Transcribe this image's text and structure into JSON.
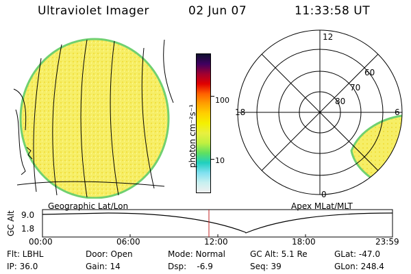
{
  "header": {
    "title": "Ultraviolet Imager",
    "date": "02 Jun 07",
    "time": "11:33:58 UT"
  },
  "colorbar": {
    "unit_label": "photon cm⁻²s⁻¹",
    "ticks": [
      "100",
      "10"
    ],
    "colors": [
      "#101030",
      "#400060",
      "#a00030",
      "#e00000",
      "#ff6000",
      "#ffa000",
      "#ffd000",
      "#f4f000",
      "#e8f040",
      "#c0f040",
      "#60e060",
      "#20d0c0",
      "#80e0f0",
      "#c8f0f0",
      "#f0f0f0"
    ]
  },
  "polar_plot": {
    "mlt_labels": [
      "12",
      "6",
      "0",
      "18"
    ],
    "mlat_labels": [
      "60",
      "70",
      "80"
    ]
  },
  "left_panel": {
    "label": "Geographic Lat/Lon"
  },
  "right_panel": {
    "label": "Apex MLat/MLT"
  },
  "timeline": {
    "axis_label": "GC Alt",
    "y_max": "9.0",
    "y_min": "1.8",
    "x_ticks": [
      "00:00",
      "06:00",
      "12:00",
      "18:00",
      "23:59"
    ],
    "current_marker_time": "11:33:58"
  },
  "status": {
    "flt": "Flt: LBHL",
    "ip": "IP: 36.0",
    "door": "Door: Open",
    "gain": "Gain: 14",
    "mode": "Mode: Normal",
    "dsp": "Dsp:    -6.9",
    "gc_alt": "GC Alt: 5.1 Re",
    "seq": "Seq: 39",
    "glat": "GLat: -47.0",
    "glon": "GLon: 248.4"
  },
  "colors": {
    "aurora_fill": "#f4ec60",
    "aurora_edge": "#70d070",
    "marker_line": "#c02020"
  }
}
